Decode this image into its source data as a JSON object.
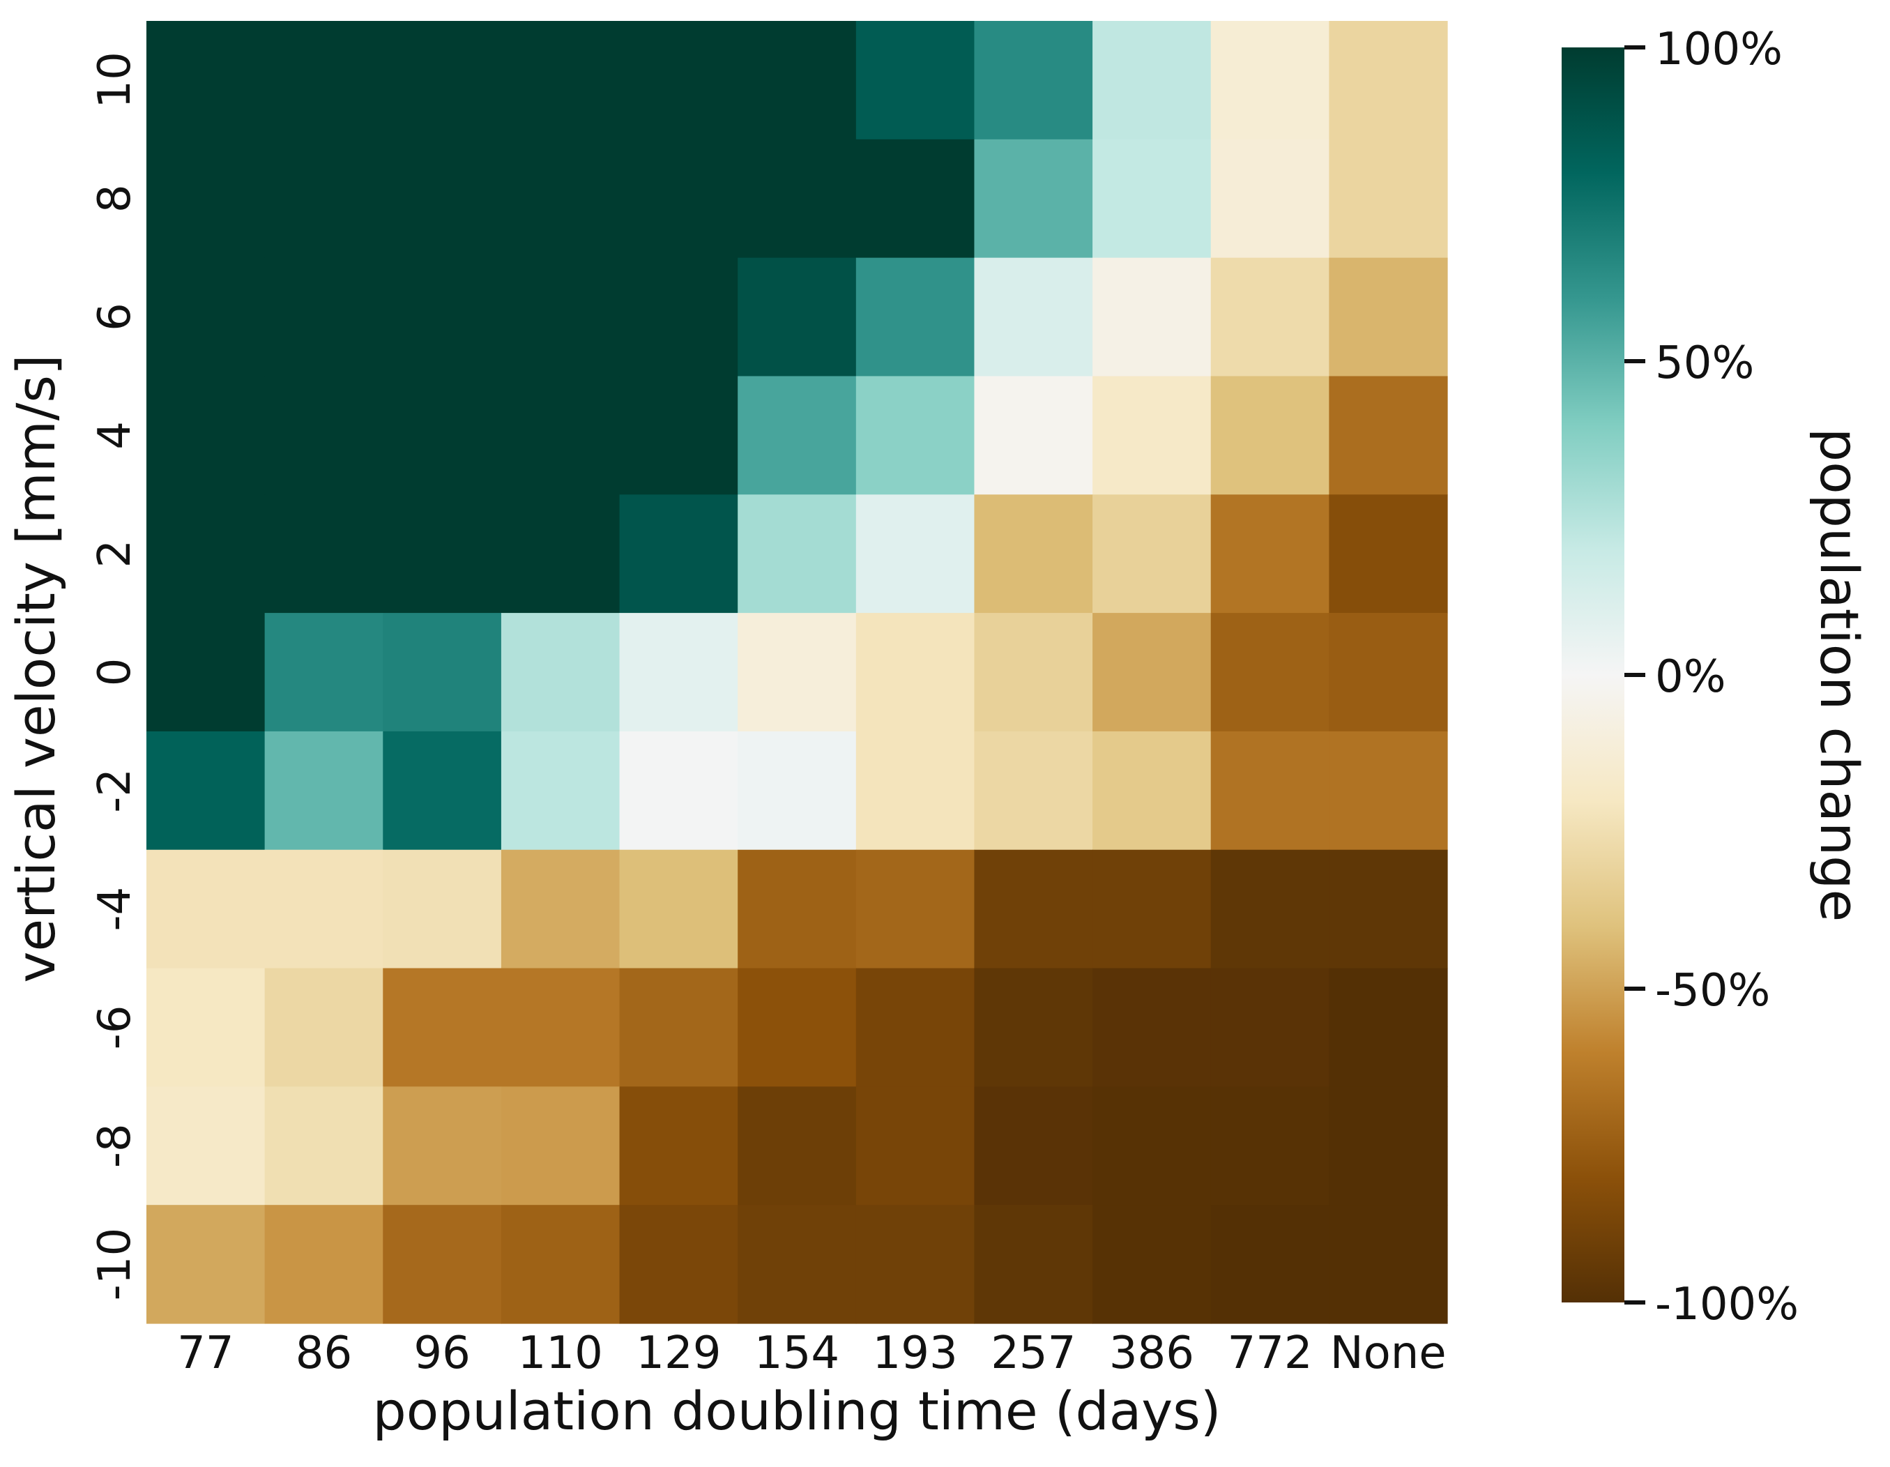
{
  "chart_data": {
    "type": "heatmap",
    "xlabel": "population doubling time (days)",
    "ylabel": "vertical velocity [mm/s]",
    "x_categories": [
      "77",
      "86",
      "96",
      "110",
      "129",
      "154",
      "193",
      "257",
      "386",
      "772",
      "None"
    ],
    "y_categories": [
      "10",
      "8",
      "6",
      "4",
      "2",
      "0",
      "-2",
      "-4",
      "-6",
      "-8",
      "-10"
    ],
    "values": [
      [
        100,
        100,
        100,
        100,
        100,
        100,
        85,
        65,
        22,
        -13,
        -30
      ],
      [
        100,
        100,
        100,
        100,
        100,
        100,
        100,
        50,
        21,
        -12,
        -30
      ],
      [
        100,
        100,
        100,
        100,
        100,
        90,
        62,
        12,
        -6,
        -27,
        -44
      ],
      [
        100,
        100,
        100,
        100,
        100,
        55,
        37,
        -3,
        -18,
        -40,
        -68
      ],
      [
        100,
        100,
        100,
        100,
        88,
        30,
        9,
        -42,
        -32,
        -65,
        -82
      ],
      [
        100,
        66,
        68,
        26,
        8,
        -11,
        -22,
        -32,
        -48,
        -73,
        -75
      ],
      [
        82,
        48,
        78,
        23,
        1,
        3,
        -22,
        -29,
        -36,
        -66,
        -66
      ],
      [
        -23,
        -23,
        -24,
        -47,
        -41,
        -73,
        -71,
        -90,
        -90,
        -96,
        -96
      ],
      [
        -20,
        -29,
        -64,
        -64,
        -71,
        -80,
        -87,
        -96,
        -98,
        -98,
        -100
      ],
      [
        -18,
        -25,
        -51,
        -52,
        -82,
        -91,
        -87,
        -98,
        -99,
        -99,
        -100
      ],
      [
        -48,
        -54,
        -70,
        -73,
        -86,
        -90,
        -90,
        -96,
        -99,
        -100,
        -100
      ]
    ],
    "colorbar": {
      "label": "population change",
      "min": -100,
      "max": 100,
      "ticks": [
        -100,
        -50,
        0,
        50,
        100
      ],
      "tick_labels": [
        "-100%",
        "-50%",
        "0%",
        "50%",
        "100%"
      ]
    },
    "colormap": "BrBG",
    "colormap_stops": [
      "#543005",
      "#8c510a",
      "#bf812d",
      "#dfc27d",
      "#f6e8c3",
      "#f5f5f5",
      "#c7eae5",
      "#80cdc1",
      "#35978f",
      "#01665e",
      "#003c30"
    ]
  }
}
